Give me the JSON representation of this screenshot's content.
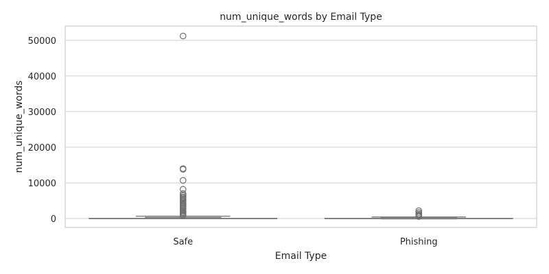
{
  "chart_data": {
    "type": "box",
    "title": "num_unique_words by Email Type",
    "xlabel": "Email Type",
    "ylabel": "num_unique_words",
    "ylim": [
      -2500,
      54000
    ],
    "yticks": [
      0,
      10000,
      20000,
      30000,
      40000,
      50000
    ],
    "ytick_labels": [
      "0",
      "10000",
      "20000",
      "30000",
      "40000",
      "50000"
    ],
    "grid": true,
    "categories": [
      "Safe",
      "Phishing"
    ],
    "boxes": [
      {
        "category": "Safe",
        "whisker_low": 0,
        "q1": 60,
        "median": 130,
        "q3": 290,
        "whisker_high": 640,
        "outliers": [
          51200,
          14000,
          13800,
          10700,
          8200,
          7000,
          6500,
          6100,
          5800,
          5500,
          5200,
          4900,
          4600,
          4300,
          4000,
          3700,
          3400,
          3100,
          2800,
          2500,
          2200,
          1900,
          1600,
          1300,
          1000,
          800
        ]
      },
      {
        "category": "Phishing",
        "whisker_low": 0,
        "q1": 40,
        "median": 90,
        "q3": 190,
        "whisker_high": 420,
        "outliers": [
          2200,
          1700,
          1300,
          1000,
          750,
          550
        ]
      }
    ],
    "colors": {
      "box_fill": "#f58d7b",
      "box_edge": "#7f7f7f",
      "grid": "#cccccc",
      "frame": "#cccccc",
      "outlier_edge": "#6e6e6e"
    }
  }
}
